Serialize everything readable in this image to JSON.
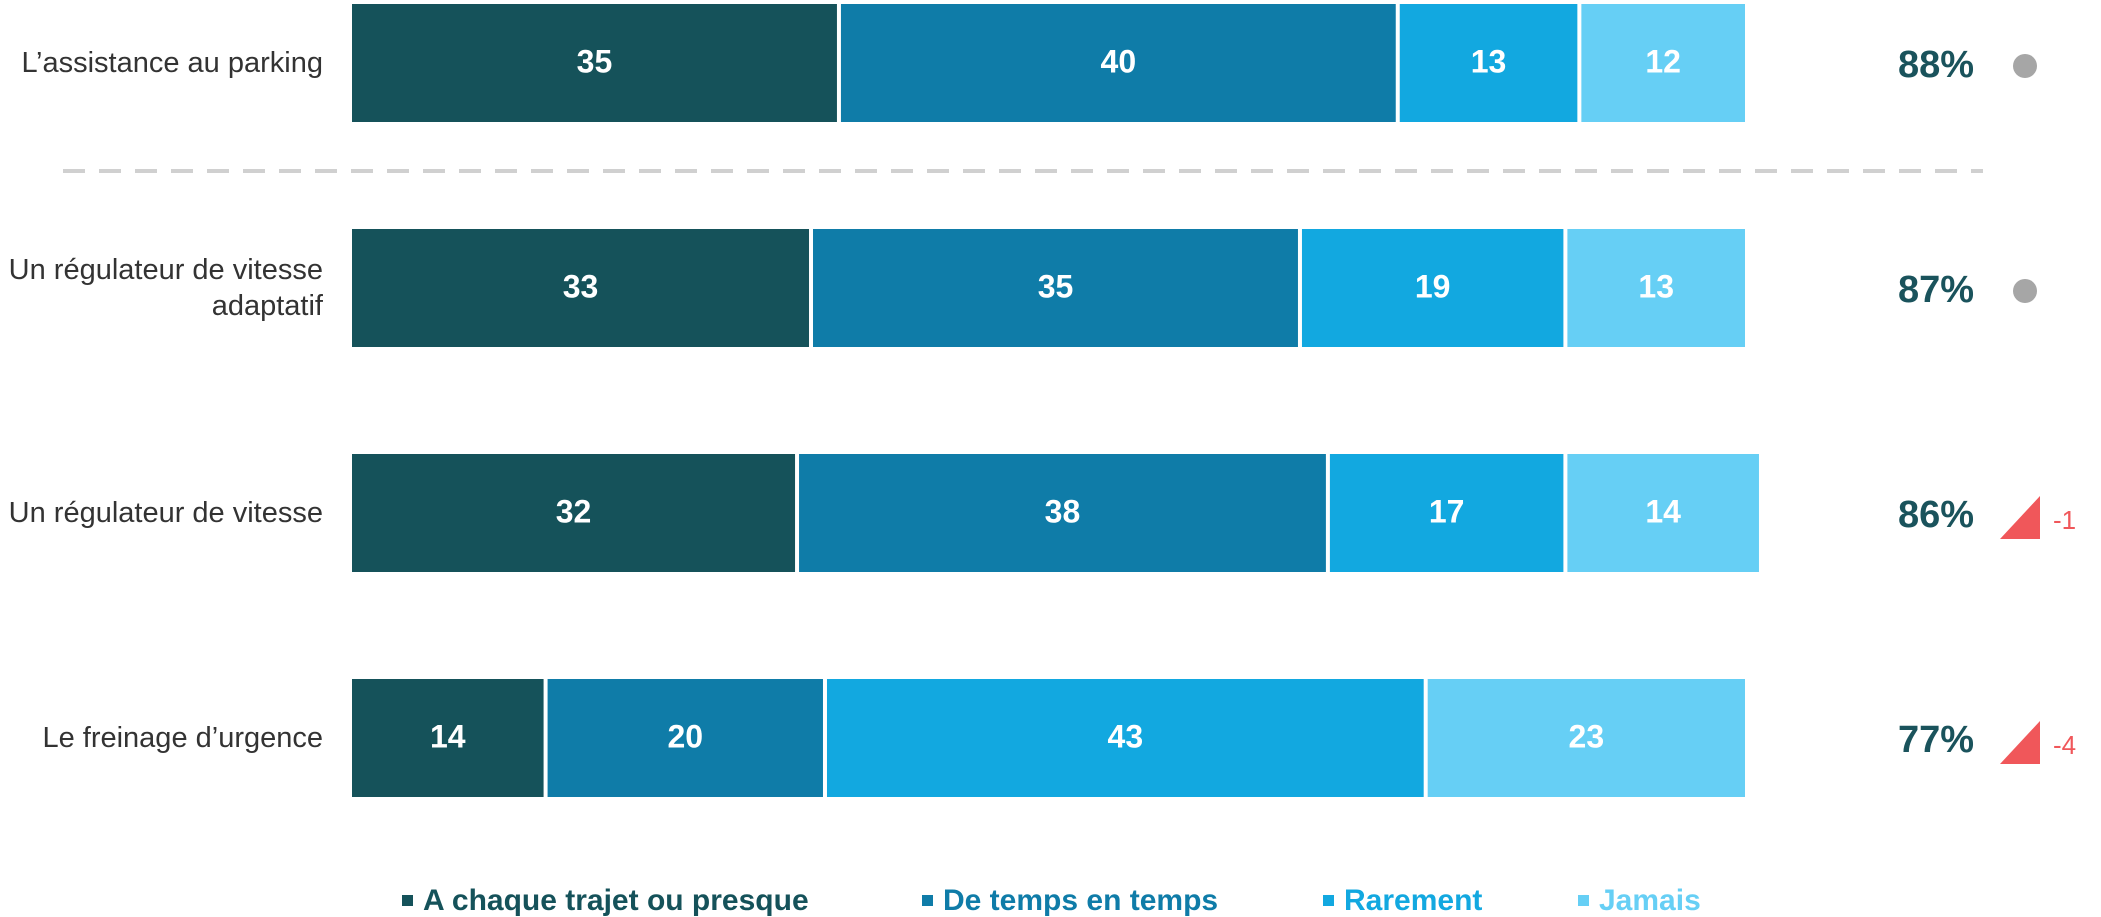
{
  "chart_data": {
    "type": "stacked-bar-horizontal",
    "categories": [
      "L’assistance au parking",
      "Un régulateur de vitesse adaptatif",
      "Un régulateur de vitesse",
      "Le freinage d’urgence"
    ],
    "series": [
      {
        "name": "A chaque trajet ou presque",
        "color": "#15525a",
        "values": [
          35,
          33,
          32,
          14
        ]
      },
      {
        "name": "De temps en temps",
        "color": "#0f7ca8",
        "values": [
          40,
          35,
          38,
          20
        ]
      },
      {
        "name": "Rarement",
        "color": "#12a8e0",
        "values": [
          13,
          19,
          17,
          43
        ]
      },
      {
        "name": "Jamais",
        "color": "#66cff5",
        "values": [
          12,
          13,
          14,
          23
        ]
      }
    ],
    "xlim": [
      0,
      100
    ],
    "totals": {
      "values": [
        88,
        87,
        86,
        77
      ],
      "value_labels": [
        "88%",
        "87%",
        "86%",
        "77%"
      ],
      "color": "#1a535c"
    },
    "changes": {
      "values": [
        null,
        null,
        -1,
        -4
      ],
      "color": "#f0575a",
      "neutral_color": "#a6a6a6"
    }
  }
}
